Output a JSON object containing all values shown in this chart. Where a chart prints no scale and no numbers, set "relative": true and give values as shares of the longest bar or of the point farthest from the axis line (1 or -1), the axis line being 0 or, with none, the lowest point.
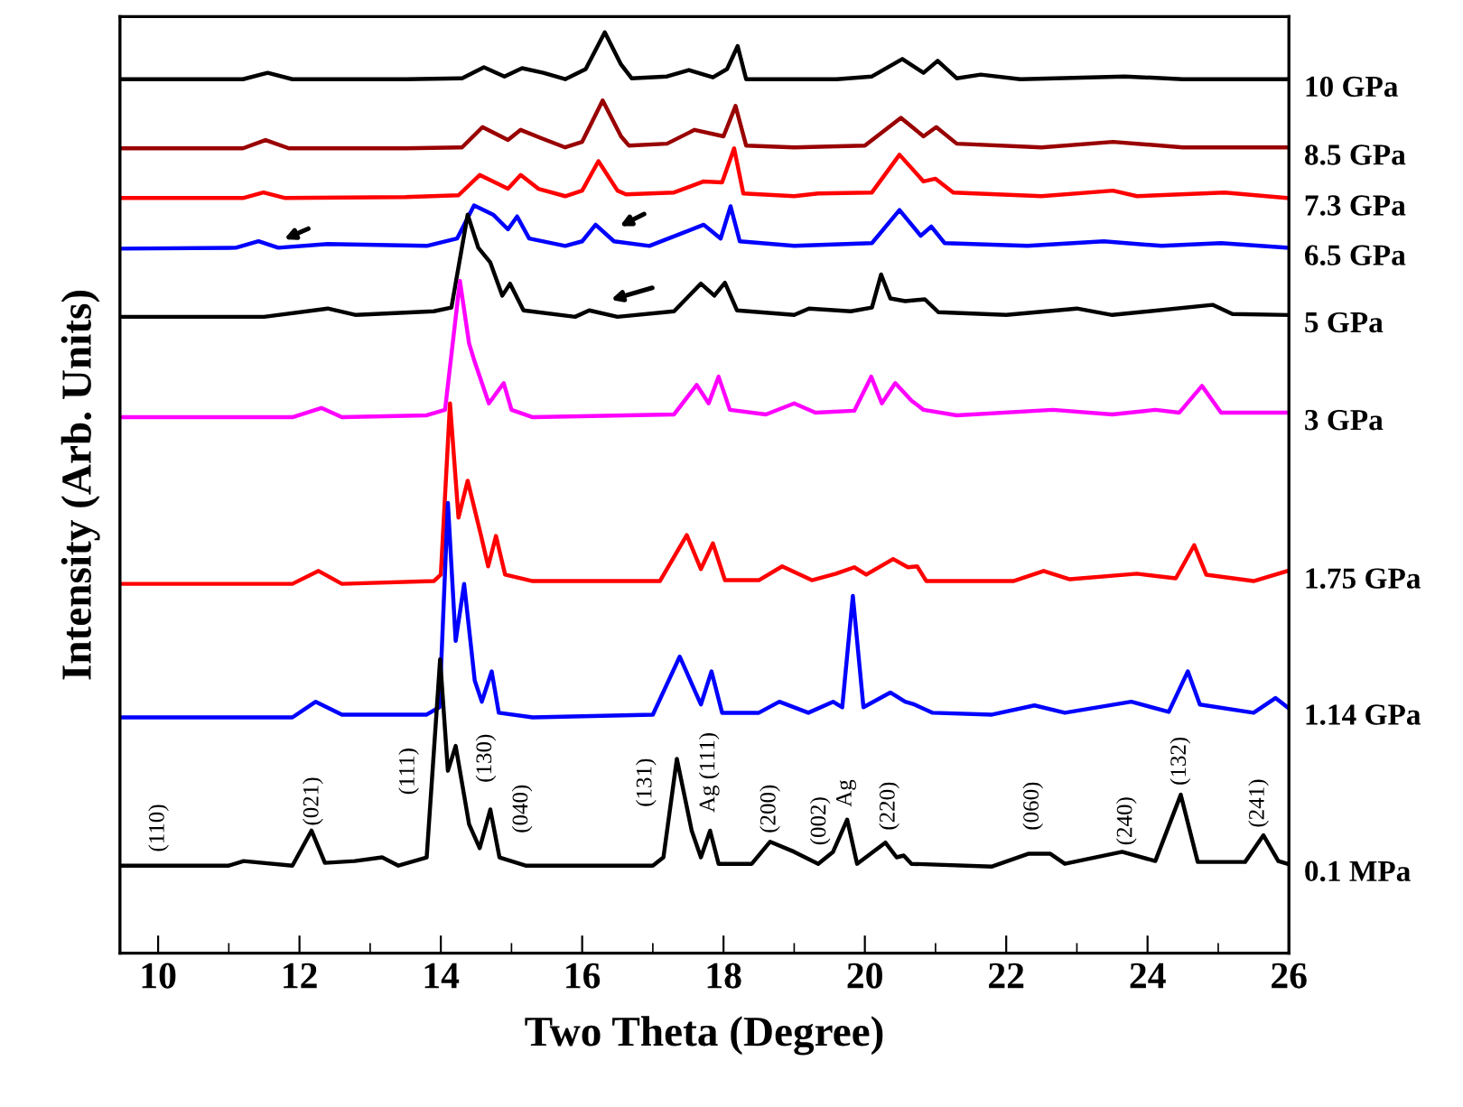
{
  "chart_data": {
    "type": "line",
    "relative": true,
    "xlabel": "Two Theta (Degree)",
    "ylabel": "Intensity (Arb. Units)",
    "xlim": [
      9.46,
      26
    ],
    "xticks": [
      10,
      12,
      14,
      16,
      18,
      20,
      22,
      24,
      26
    ],
    "grid": false,
    "legend": false,
    "series": [
      {
        "name": "10 GPa",
        "color": "#000000",
        "x": [
          9.46,
          11.2,
          11.55,
          11.9,
          13.5,
          14.3,
          14.61,
          14.9,
          15.15,
          15.45,
          15.76,
          16.05,
          16.32,
          16.55,
          16.7,
          17.2,
          17.51,
          17.85,
          18.05,
          18.2,
          18.32,
          19.0,
          19.6,
          20.1,
          20.53,
          20.83,
          21.03,
          21.3,
          21.64,
          22.2,
          23.68,
          24.5,
          25.98
        ],
        "values": [
          0.949,
          0.949,
          0.956,
          0.949,
          0.949,
          0.95,
          0.962,
          0.952,
          0.961,
          0.956,
          0.949,
          0.96,
          1.0,
          0.965,
          0.95,
          0.952,
          0.959,
          0.951,
          0.96,
          0.985,
          0.949,
          0.949,
          0.949,
          0.952,
          0.971,
          0.956,
          0.969,
          0.95,
          0.954,
          0.949,
          0.952,
          0.949,
          0.949
        ]
      },
      {
        "name": "8.5 GPa",
        "color": "#990000",
        "x": [
          9.46,
          11.2,
          11.52,
          11.85,
          13.5,
          14.3,
          14.59,
          14.95,
          15.13,
          15.42,
          15.76,
          16.0,
          16.29,
          16.55,
          16.66,
          17.2,
          17.59,
          18.0,
          18.17,
          18.32,
          19.0,
          20.0,
          20.51,
          20.83,
          21.01,
          21.3,
          22.5,
          23.51,
          24.5,
          25.98
        ],
        "values": [
          0.874,
          0.874,
          0.883,
          0.874,
          0.874,
          0.875,
          0.897,
          0.883,
          0.894,
          0.885,
          0.875,
          0.881,
          0.926,
          0.887,
          0.877,
          0.879,
          0.894,
          0.887,
          0.92,
          0.877,
          0.875,
          0.877,
          0.907,
          0.887,
          0.897,
          0.879,
          0.875,
          0.881,
          0.875,
          0.875
        ]
      },
      {
        "name": "7.3 GPa",
        "color": "#ff0000",
        "x": [
          9.46,
          11.2,
          11.49,
          11.8,
          13.5,
          14.25,
          14.55,
          14.95,
          15.13,
          15.38,
          15.76,
          16.0,
          16.23,
          16.5,
          16.62,
          17.3,
          17.72,
          17.98,
          18.15,
          18.28,
          19.0,
          19.34,
          20.1,
          20.49,
          20.83,
          21.0,
          21.25,
          22.5,
          23.51,
          23.85,
          25.09,
          25.98
        ],
        "values": [
          0.82,
          0.82,
          0.826,
          0.82,
          0.821,
          0.823,
          0.845,
          0.83,
          0.845,
          0.83,
          0.822,
          0.828,
          0.86,
          0.828,
          0.824,
          0.826,
          0.838,
          0.837,
          0.874,
          0.825,
          0.822,
          0.825,
          0.826,
          0.867,
          0.838,
          0.841,
          0.826,
          0.822,
          0.828,
          0.822,
          0.826,
          0.82
        ]
      },
      {
        "name": "6.5 GPa",
        "color": "#0000ff",
        "x": [
          9.46,
          11.1,
          11.42,
          11.7,
          12.4,
          13.8,
          14.23,
          14.47,
          14.74,
          14.95,
          15.08,
          15.25,
          15.76,
          16.0,
          16.19,
          16.45,
          16.95,
          17.72,
          17.96,
          18.1,
          18.23,
          19.0,
          20.1,
          20.49,
          20.79,
          20.94,
          21.13,
          22.3,
          23.38,
          24.2,
          25.04,
          25.98
        ],
        "values": [
          0.765,
          0.766,
          0.773,
          0.766,
          0.77,
          0.768,
          0.776,
          0.812,
          0.802,
          0.786,
          0.8,
          0.776,
          0.768,
          0.773,
          0.791,
          0.773,
          0.768,
          0.791,
          0.776,
          0.811,
          0.773,
          0.768,
          0.771,
          0.807,
          0.779,
          0.789,
          0.771,
          0.768,
          0.773,
          0.768,
          0.771,
          0.766
        ]
      },
      {
        "name": "5 GPa",
        "color": "#000000",
        "x": [
          9.46,
          11.5,
          12.4,
          12.8,
          13.9,
          14.15,
          14.38,
          14.53,
          14.7,
          14.87,
          14.98,
          15.17,
          15.9,
          16.1,
          16.5,
          17.3,
          17.68,
          17.87,
          18.02,
          18.19,
          19.0,
          19.21,
          19.8,
          20.1,
          20.23,
          20.36,
          20.57,
          20.85,
          21.04,
          22.0,
          23.0,
          23.5,
          24.92,
          25.2,
          25.98
        ],
        "values": [
          0.691,
          0.691,
          0.7,
          0.693,
          0.697,
          0.701,
          0.802,
          0.766,
          0.75,
          0.714,
          0.727,
          0.698,
          0.691,
          0.698,
          0.691,
          0.697,
          0.727,
          0.714,
          0.728,
          0.698,
          0.693,
          0.7,
          0.697,
          0.701,
          0.737,
          0.711,
          0.708,
          0.71,
          0.696,
          0.693,
          0.7,
          0.693,
          0.704,
          0.694,
          0.693
        ]
      },
      {
        "name": "3 GPa",
        "color": "#ff00ff",
        "x": [
          9.46,
          11.9,
          12.31,
          12.6,
          13.8,
          14.06,
          14.27,
          14.4,
          14.48,
          14.68,
          14.89,
          15.0,
          15.3,
          17.3,
          17.62,
          17.79,
          17.93,
          18.09,
          18.6,
          19.0,
          19.3,
          19.85,
          20.09,
          20.24,
          20.43,
          20.66,
          20.83,
          21.3,
          22.66,
          23.5,
          24.11,
          24.45,
          24.77,
          25.04,
          25.98
        ],
        "values": [
          0.582,
          0.582,
          0.592,
          0.582,
          0.584,
          0.59,
          0.73,
          0.662,
          0.642,
          0.597,
          0.619,
          0.59,
          0.582,
          0.585,
          0.617,
          0.597,
          0.626,
          0.59,
          0.585,
          0.597,
          0.587,
          0.589,
          0.626,
          0.597,
          0.619,
          0.6,
          0.59,
          0.584,
          0.59,
          0.585,
          0.59,
          0.587,
          0.616,
          0.587,
          0.587
        ]
      },
      {
        "name": "1.75 GPa",
        "color": "#ff0000",
        "x": [
          9.46,
          11.9,
          12.27,
          12.6,
          13.9,
          14.0,
          14.13,
          14.25,
          14.38,
          14.57,
          14.67,
          14.78,
          14.91,
          15.3,
          17.1,
          17.48,
          17.68,
          17.85,
          18.02,
          18.5,
          18.83,
          19.25,
          19.59,
          19.85,
          20.02,
          20.4,
          20.61,
          20.74,
          20.87,
          22.1,
          22.53,
          22.9,
          23.85,
          24.4,
          24.66,
          24.83,
          25.5,
          25.98
        ],
        "values": [
          0.401,
          0.401,
          0.415,
          0.401,
          0.404,
          0.411,
          0.597,
          0.473,
          0.513,
          0.453,
          0.42,
          0.453,
          0.411,
          0.404,
          0.404,
          0.454,
          0.417,
          0.445,
          0.405,
          0.405,
          0.42,
          0.405,
          0.412,
          0.419,
          0.411,
          0.428,
          0.419,
          0.42,
          0.404,
          0.404,
          0.415,
          0.406,
          0.412,
          0.407,
          0.443,
          0.411,
          0.404,
          0.415
        ]
      },
      {
        "name": "1.14 GPa",
        "color": "#0000ff",
        "x": [
          9.46,
          11.9,
          12.23,
          12.6,
          13.8,
          13.98,
          14.1,
          14.21,
          14.33,
          14.48,
          14.58,
          14.72,
          14.82,
          15.3,
          17.0,
          17.38,
          17.68,
          17.83,
          17.98,
          18.5,
          18.79,
          19.2,
          19.55,
          19.68,
          19.83,
          19.98,
          20.36,
          20.57,
          20.7,
          20.96,
          21.8,
          22.4,
          22.83,
          23.77,
          24.3,
          24.57,
          24.74,
          25.5,
          25.81,
          25.98
        ],
        "values": [
          0.256,
          0.256,
          0.273,
          0.259,
          0.259,
          0.267,
          0.489,
          0.339,
          0.401,
          0.296,
          0.273,
          0.306,
          0.261,
          0.256,
          0.259,
          0.322,
          0.27,
          0.306,
          0.261,
          0.261,
          0.273,
          0.261,
          0.273,
          0.267,
          0.388,
          0.267,
          0.283,
          0.273,
          0.27,
          0.261,
          0.259,
          0.269,
          0.261,
          0.273,
          0.262,
          0.306,
          0.27,
          0.261,
          0.277,
          0.267
        ]
      },
      {
        "name": "0.1 MPa",
        "color": "#000000",
        "x": [
          9.46,
          11.0,
          11.21,
          11.9,
          12.17,
          12.36,
          12.78,
          13.17,
          13.4,
          13.8,
          13.99,
          14.1,
          14.21,
          14.4,
          14.55,
          14.7,
          14.83,
          15.2,
          17.0,
          17.15,
          17.34,
          17.55,
          17.68,
          17.81,
          17.93,
          18.4,
          18.66,
          19.0,
          19.34,
          19.55,
          19.75,
          19.89,
          20.29,
          20.45,
          20.55,
          20.66,
          21.8,
          22.32,
          22.62,
          22.83,
          23.64,
          24.11,
          24.47,
          24.71,
          25.38,
          25.64,
          25.85,
          25.98
        ],
        "values": [
          0.095,
          0.095,
          0.1,
          0.095,
          0.133,
          0.098,
          0.1,
          0.104,
          0.095,
          0.104,
          0.319,
          0.198,
          0.225,
          0.14,
          0.114,
          0.156,
          0.104,
          0.095,
          0.095,
          0.104,
          0.211,
          0.133,
          0.104,
          0.133,
          0.097,
          0.097,
          0.121,
          0.11,
          0.097,
          0.11,
          0.145,
          0.097,
          0.12,
          0.104,
          0.106,
          0.097,
          0.094,
          0.108,
          0.108,
          0.097,
          0.11,
          0.1,
          0.172,
          0.099,
          0.099,
          0.128,
          0.1,
          0.097
        ]
      }
    ],
    "annotations": [
      "(110)",
      "(021)",
      "(111)",
      "(130)",
      "(040)",
      "(131)",
      "Ag (111)",
      "(200)",
      "(002)",
      "Ag",
      "(220)",
      "(060)",
      "(240)",
      "(132)",
      "(241)"
    ]
  }
}
